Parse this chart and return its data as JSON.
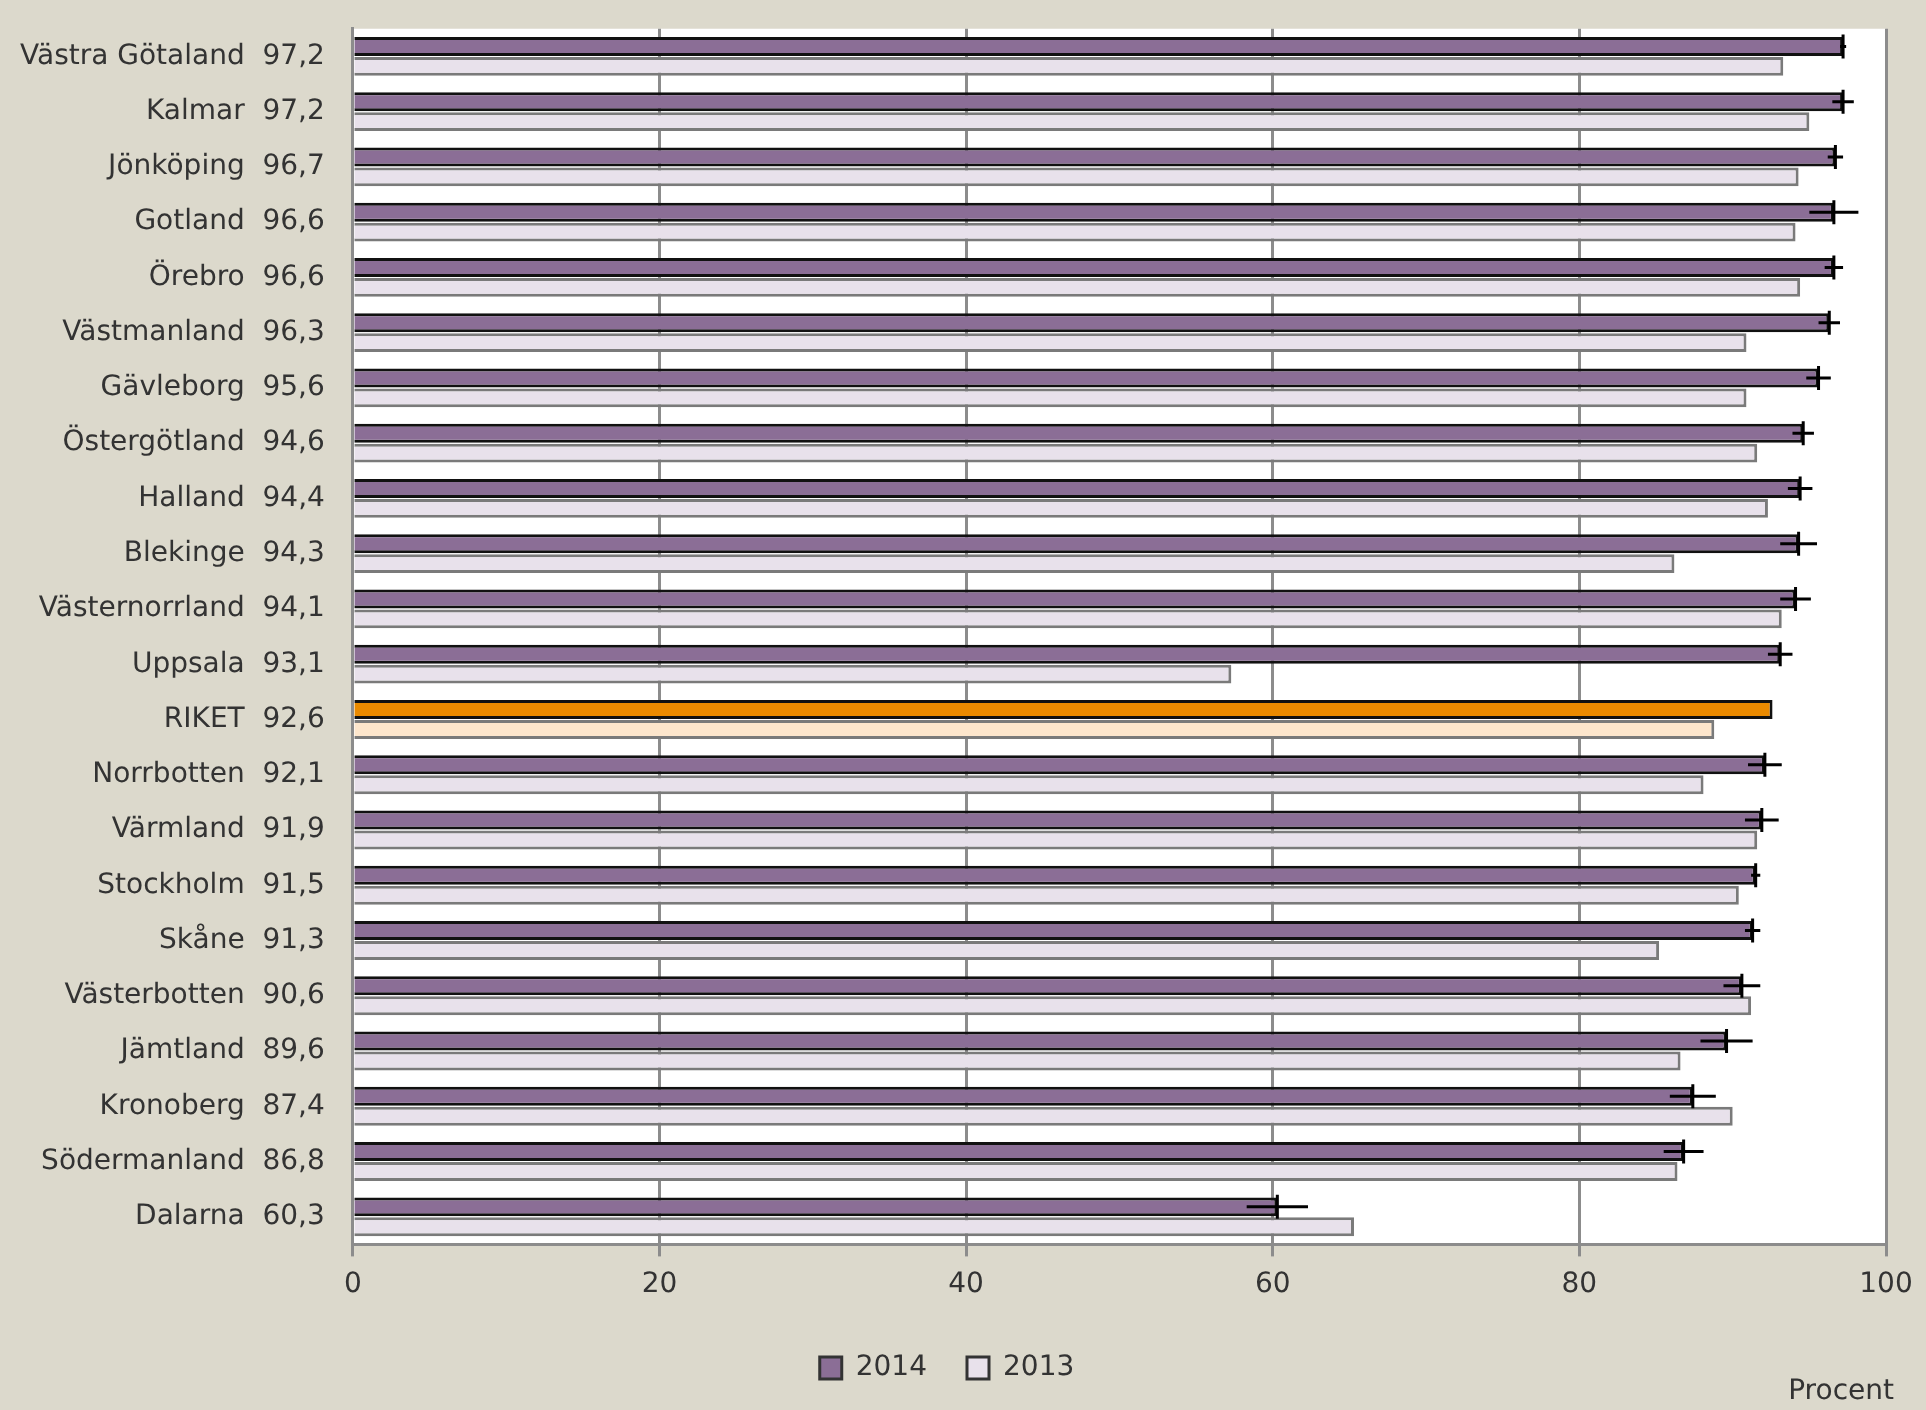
{
  "chart_data": {
    "type": "bar",
    "orientation": "horizontal",
    "xlabel": "Procent",
    "categories": [
      "Västra Götaland  97,2",
      "Kalmar  97,2",
      "Jönköping  96,7",
      "Gotland  96,6",
      "Örebro  96,6",
      "Västmanland  96,3",
      "Gävleborg  95,6",
      "Östergötland  94,6",
      "Halland  94,4",
      "Blekinge  94,3",
      "Västernorrland  94,1",
      "Uppsala  93,1",
      "RIKET  92,6",
      "Norrbotten  92,1",
      "Värmland  91,9",
      "Stockholm  91,5",
      "Skåne  91,3",
      "Västerbotten  90,6",
      "Jämtland  89,6",
      "Kronoberg  87,4",
      "Södermanland  86,8",
      "Dalarna  60,3"
    ],
    "series": [
      {
        "name": "2014",
        "color": "#8b6e96",
        "colors": [
          "#8b6e96",
          "#8b6e96",
          "#8b6e96",
          "#8b6e96",
          "#8b6e96",
          "#8b6e96",
          "#8b6e96",
          "#8b6e96",
          "#8b6e96",
          "#8b6e96",
          "#8b6e96",
          "#8b6e96",
          "#ea8a00",
          "#8b6e96",
          "#8b6e96",
          "#8b6e96",
          "#8b6e96",
          "#8b6e96",
          "#8b6e96",
          "#8b6e96",
          "#8b6e96",
          "#8b6e96"
        ],
        "values": [
          97.2,
          97.2,
          96.7,
          96.6,
          96.6,
          96.3,
          95.6,
          94.6,
          94.4,
          94.3,
          94.1,
          93.1,
          92.6,
          92.1,
          91.9,
          91.5,
          91.3,
          90.6,
          89.6,
          87.4,
          86.8,
          60.3
        ],
        "errors": [
          0.2,
          0.7,
          0.5,
          1.6,
          0.6,
          0.7,
          0.8,
          0.7,
          0.8,
          1.2,
          1.0,
          0.8,
          null,
          1.1,
          1.1,
          0.3,
          0.5,
          1.2,
          1.7,
          1.5,
          1.3,
          2.0
        ]
      },
      {
        "name": "2013",
        "color": "#e8e1eb",
        "colors": [
          "#e8e1eb",
          "#e8e1eb",
          "#e8e1eb",
          "#e8e1eb",
          "#e8e1eb",
          "#e8e1eb",
          "#e8e1eb",
          "#e8e1eb",
          "#e8e1eb",
          "#e8e1eb",
          "#e8e1eb",
          "#e8e1eb",
          "#fde6cc",
          "#e8e1eb",
          "#e8e1eb",
          "#e8e1eb",
          "#e8e1eb",
          "#e8e1eb",
          "#e8e1eb",
          "#e8e1eb",
          "#e8e1eb",
          "#e8e1eb"
        ],
        "values": [
          93.3,
          95.0,
          94.3,
          94.1,
          94.4,
          90.9,
          90.9,
          91.6,
          92.3,
          86.2,
          93.2,
          57.3,
          88.8,
          88.1,
          91.6,
          90.4,
          85.2,
          91.2,
          86.6,
          90.0,
          86.4,
          65.3
        ]
      }
    ],
    "xlim": [
      0,
      100
    ],
    "xticks": [
      0,
      20,
      40,
      60,
      80,
      100
    ],
    "grid": "x",
    "legend": "bottom"
  }
}
